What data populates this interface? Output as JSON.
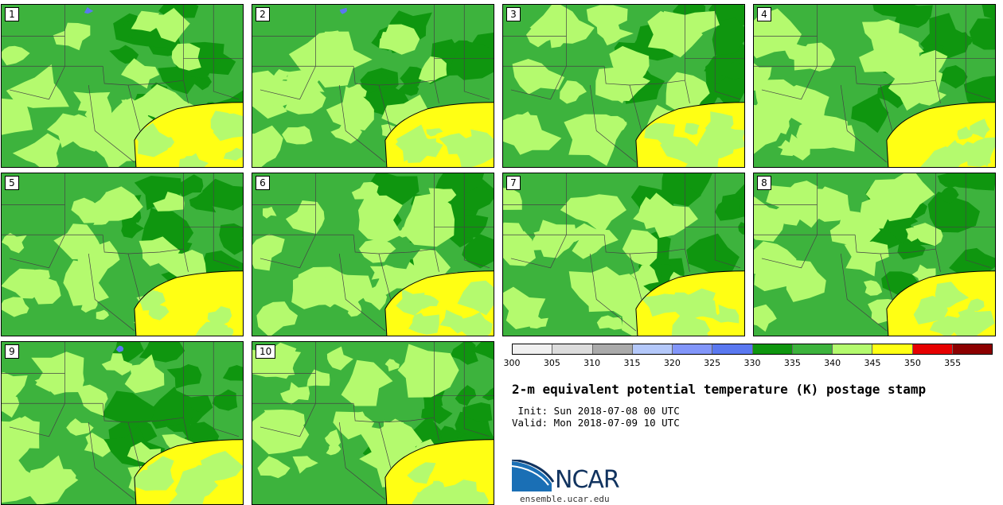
{
  "figure": {
    "title": "2-m equivalent potential temperature (K) postage stamp",
    "init": " Init: Sun 2018-07-08 00 UTC",
    "valid": "Valid: Mon 2018-07-09 10 UTC"
  },
  "panels": [
    {
      "label": "1"
    },
    {
      "label": "2"
    },
    {
      "label": "3"
    },
    {
      "label": "4"
    },
    {
      "label": "5"
    },
    {
      "label": "6"
    },
    {
      "label": "7"
    },
    {
      "label": "8"
    },
    {
      "label": "9"
    },
    {
      "label": "10"
    }
  ],
  "colorbar": {
    "colors": [
      "#f0f0f0",
      "#dcdcdc",
      "#aaaaaa",
      "#b4c8fa",
      "#8296fa",
      "#5a78f0",
      "#0f960f",
      "#3db33d",
      "#b4fa6e",
      "#ffff14",
      "#e60000",
      "#8c0000"
    ],
    "ticks": [
      "300",
      "305",
      "310",
      "315",
      "320",
      "325",
      "330",
      "335",
      "340",
      "345",
      "350",
      "355"
    ]
  },
  "map_colors": {
    "dark_green": "#0f960f",
    "green": "#3db33d",
    "light_green": "#b4fa6e",
    "yellow": "#ffff14",
    "blue": "#5a78f0"
  },
  "logo": {
    "text": "NCAR",
    "url": "ensemble.ucar.edu"
  }
}
